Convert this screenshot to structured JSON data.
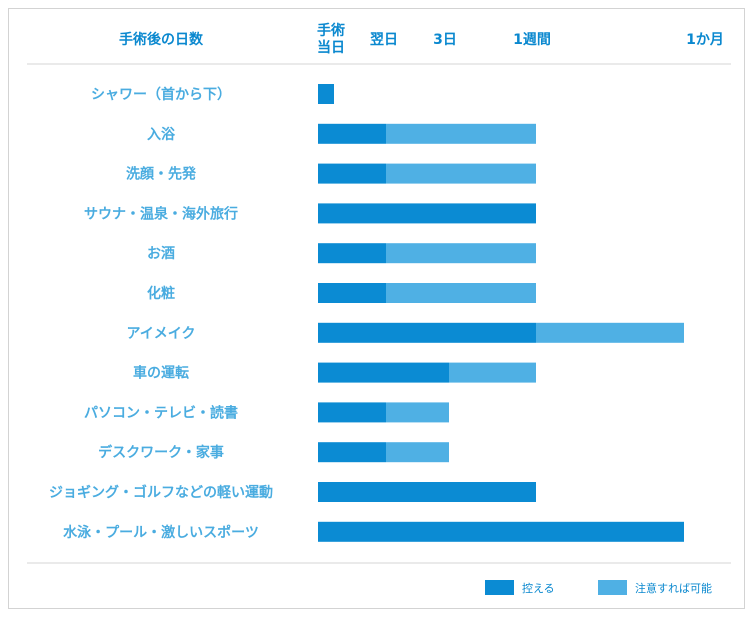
{
  "colors": {
    "restrict": "#0b8bd3",
    "caution": "#4fb0e4",
    "text_dark": "#0a88cf",
    "text_light": "#4aace0",
    "rule": "#d6d6d6"
  },
  "chart_data": {
    "type": "bar",
    "orientation": "horizontal",
    "stacked": true,
    "category_header": "手術後の日数",
    "x_ticks": [
      {
        "label_lines": [
          "手術",
          "当日"
        ],
        "day": 0
      },
      {
        "label_lines": [
          "翌日"
        ],
        "day": 1
      },
      {
        "label_lines": [
          "3日"
        ],
        "day": 3
      },
      {
        "label_lines": [
          "1週間"
        ],
        "day": 7
      },
      {
        "label_lines": [
          "1か月"
        ],
        "day": 30
      }
    ],
    "categories": [
      "シャワー（首から下）",
      "入浴",
      "洗顔・先発",
      "サウナ・温泉・海外旅行",
      "お酒",
      "化粧",
      "アイメイク",
      "車の運転",
      "パソコン・テレビ・読書",
      "デスクワーク・家事",
      "ジョギング・ゴルフなどの軽い運動",
      "水泳・プール・激しいスポーツ"
    ],
    "series": [
      {
        "name": "控える",
        "color": "#0b8bd3",
        "ranges": [
          [
            0,
            0
          ],
          [
            0,
            1
          ],
          [
            0,
            1
          ],
          [
            0,
            7
          ],
          [
            0,
            1
          ],
          [
            0,
            1
          ],
          [
            0,
            7
          ],
          [
            0,
            3
          ],
          [
            0,
            1
          ],
          [
            0,
            1
          ],
          [
            0,
            7
          ],
          [
            0,
            30
          ]
        ]
      },
      {
        "name": "注意すれば可能",
        "color": "#4fb0e4",
        "ranges": [
          null,
          [
            1,
            7
          ],
          [
            1,
            7
          ],
          null,
          [
            1,
            7
          ],
          [
            1,
            7
          ],
          [
            7,
            30
          ],
          [
            3,
            7
          ],
          [
            1,
            3
          ],
          [
            1,
            3
          ],
          null,
          null
        ]
      }
    ],
    "legend": {
      "position": "bottom-right",
      "items": [
        "控える",
        "注意すれば可能"
      ]
    }
  }
}
